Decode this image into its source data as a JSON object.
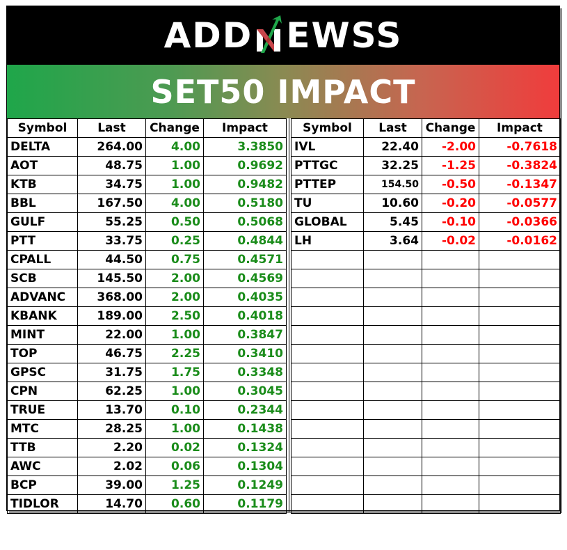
{
  "brand": {
    "logo_text_left": "ADD",
    "logo_text_right": "EWSS",
    "logo_accent_color": "#1fa64a"
  },
  "banner": {
    "title": "SET50 IMPACT",
    "gradient_start": "#1fa64a",
    "gradient_end": "#f03c3c"
  },
  "colors": {
    "gain": "#1a8c1a",
    "loss": "#ff0000"
  },
  "headers": [
    "Symbol",
    "Last",
    "Change",
    "Impact"
  ],
  "gainers": [
    {
      "symbol": "DELTA",
      "last": "264.00",
      "change": "4.00",
      "impact": "3.3850"
    },
    {
      "symbol": "AOT",
      "last": "48.75",
      "change": "1.00",
      "impact": "0.9692"
    },
    {
      "symbol": "KTB",
      "last": "34.75",
      "change": "1.00",
      "impact": "0.9482"
    },
    {
      "symbol": "BBL",
      "last": "167.50",
      "change": "4.00",
      "impact": "0.5180"
    },
    {
      "symbol": "GULF",
      "last": "55.25",
      "change": "0.50",
      "impact": "0.5068"
    },
    {
      "symbol": "PTT",
      "last": "33.75",
      "change": "0.25",
      "impact": "0.4844"
    },
    {
      "symbol": "CPALL",
      "last": "44.50",
      "change": "0.75",
      "impact": "0.4571"
    },
    {
      "symbol": "SCB",
      "last": "145.50",
      "change": "2.00",
      "impact": "0.4569"
    },
    {
      "symbol": "ADVANC",
      "last": "368.00",
      "change": "2.00",
      "impact": "0.4035"
    },
    {
      "symbol": "KBANK",
      "last": "189.00",
      "change": "2.50",
      "impact": "0.4018"
    },
    {
      "symbol": "MINT",
      "last": "22.00",
      "change": "1.00",
      "impact": "0.3847"
    },
    {
      "symbol": "TOP",
      "last": "46.75",
      "change": "2.25",
      "impact": "0.3410"
    },
    {
      "symbol": "GPSC",
      "last": "31.75",
      "change": "1.75",
      "impact": "0.3348"
    },
    {
      "symbol": "CPN",
      "last": "62.25",
      "change": "1.00",
      "impact": "0.3045"
    },
    {
      "symbol": "TRUE",
      "last": "13.70",
      "change": "0.10",
      "impact": "0.2344"
    },
    {
      "symbol": "MTC",
      "last": "28.25",
      "change": "1.00",
      "impact": "0.1438"
    },
    {
      "symbol": "TTB",
      "last": "2.20",
      "change": "0.02",
      "impact": "0.1324"
    },
    {
      "symbol": "AWC",
      "last": "2.02",
      "change": "0.06",
      "impact": "0.1304"
    },
    {
      "symbol": "BCP",
      "last": "39.00",
      "change": "1.25",
      "impact": "0.1249"
    },
    {
      "symbol": "TIDLOR",
      "last": "14.70",
      "change": "0.60",
      "impact": "0.1179"
    }
  ],
  "losers": [
    {
      "symbol": "IVL",
      "last": "22.40",
      "change": "-2.00",
      "impact": "-0.7618"
    },
    {
      "symbol": "PTTGC",
      "last": "32.25",
      "change": "-1.25",
      "impact": "-0.3824"
    },
    {
      "symbol": "PTTEP",
      "last": "154.50",
      "change": "-0.50",
      "impact": "-0.1347"
    },
    {
      "symbol": "TU",
      "last": "10.60",
      "change": "-0.20",
      "impact": "-0.0577"
    },
    {
      "symbol": "GLOBAL",
      "last": "5.45",
      "change": "-0.10",
      "impact": "-0.0366"
    },
    {
      "symbol": "LH",
      "last": "3.64",
      "change": "-0.02",
      "impact": "-0.0162"
    }
  ]
}
